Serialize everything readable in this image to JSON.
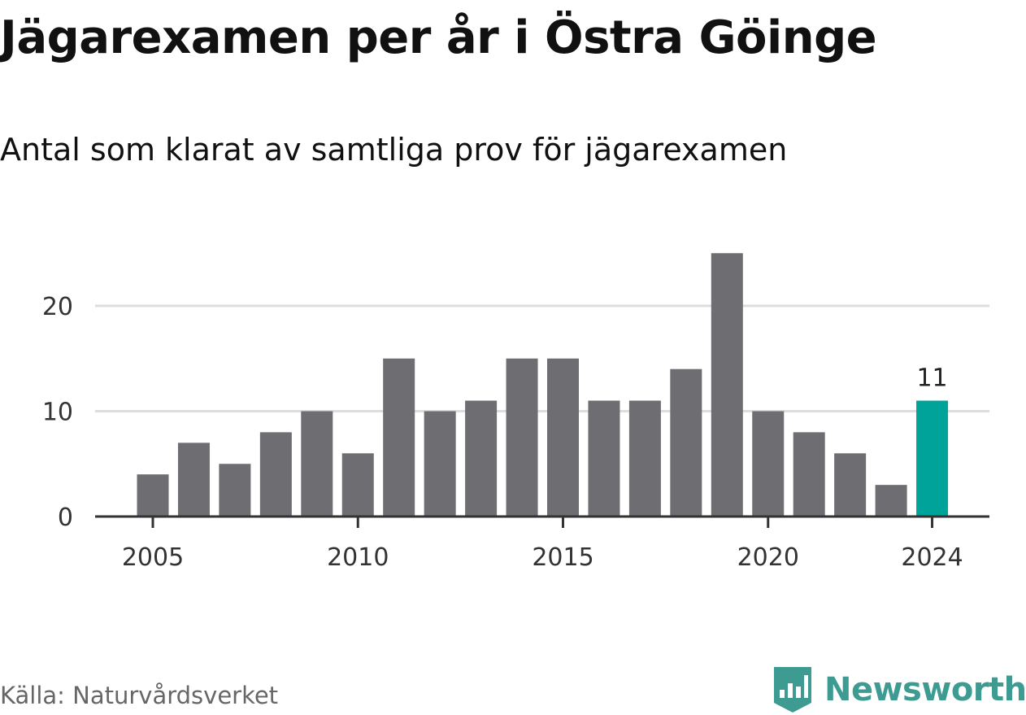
{
  "title": "Jägarexamen per år i Östra Göinge",
  "subtitle": "Antal som klarat av samtliga prov för jägarexamen",
  "source": "Källa: Naturvårdsverket",
  "brand": {
    "name": "Newsworthy",
    "icon": "newsworthy-logo-icon",
    "color": "#3e9b92"
  },
  "colors": {
    "bar": "#6e6d72",
    "highlight": "#00a39a",
    "grid": "#dddddd",
    "axis": "#333333"
  },
  "chart_data": {
    "type": "bar",
    "x": [
      2005,
      2006,
      2007,
      2008,
      2009,
      2010,
      2011,
      2012,
      2013,
      2014,
      2015,
      2016,
      2017,
      2018,
      2019,
      2020,
      2021,
      2022,
      2023,
      2024
    ],
    "values": [
      4,
      7,
      5,
      8,
      10,
      6,
      15,
      10,
      11,
      15,
      15,
      11,
      11,
      14,
      25,
      10,
      8,
      6,
      3,
      11
    ],
    "highlight": 2024,
    "data_labels": [
      {
        "x": 2024,
        "text": "11"
      }
    ],
    "x_ticks": [
      "2005",
      "2010",
      "2015",
      "2020",
      "2024"
    ],
    "y_ticks": [
      "0",
      "10",
      "20"
    ],
    "ylim": [
      0,
      25
    ],
    "xlabel": "",
    "ylabel": "",
    "grid": true,
    "legend": "none"
  }
}
